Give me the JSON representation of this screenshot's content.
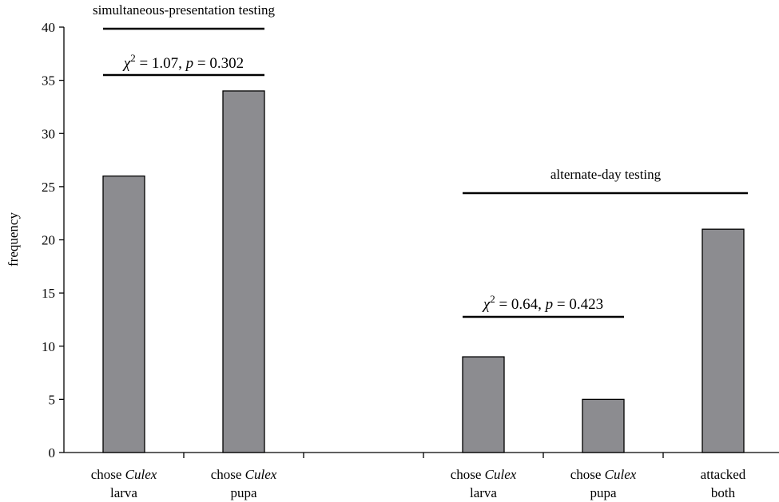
{
  "chart_data": {
    "type": "bar",
    "ylabel": "frequency",
    "ylim": [
      0,
      40
    ],
    "yticks": [
      0,
      5,
      10,
      15,
      20,
      25,
      30,
      35,
      40
    ],
    "bar_color": "#8c8c90",
    "slots": 6,
    "categories": [
      {
        "slot": 0,
        "line1": "chose ",
        "line1_italic": "Culex",
        "line2": "larva",
        "value": 26
      },
      {
        "slot": 1,
        "line1": "chose ",
        "line1_italic": "Culex",
        "line2": "pupa",
        "value": 34
      },
      {
        "slot": 3,
        "line1": "chose ",
        "line1_italic": "Culex",
        "line2": "larva",
        "value": 9
      },
      {
        "slot": 4,
        "line1": "chose ",
        "line1_italic": "Culex",
        "line2": "pupa",
        "value": 5
      },
      {
        "slot": 5,
        "line1": "attacked",
        "line1_italic": "",
        "line2": "both",
        "value": 21
      }
    ],
    "groups": [
      {
        "label": "simultaneous-presentation testing",
        "slot_start": 0,
        "slot_end": 1
      },
      {
        "label": "alternate-day testing",
        "slot_start": 3,
        "slot_end": 5
      }
    ],
    "annotations": [
      {
        "text_pre": "χ",
        "sup": "2",
        "text_post": " = 1.07, ",
        "p_label": "p",
        "p_text": " = 0.302",
        "slot_start": 0,
        "slot_end": 1
      },
      {
        "text_pre": "χ",
        "sup": "2",
        "text_post": " = 0.64, ",
        "p_label": "p",
        "p_text": " = 0.423",
        "slot_start": 3,
        "slot_end": 4
      }
    ]
  }
}
